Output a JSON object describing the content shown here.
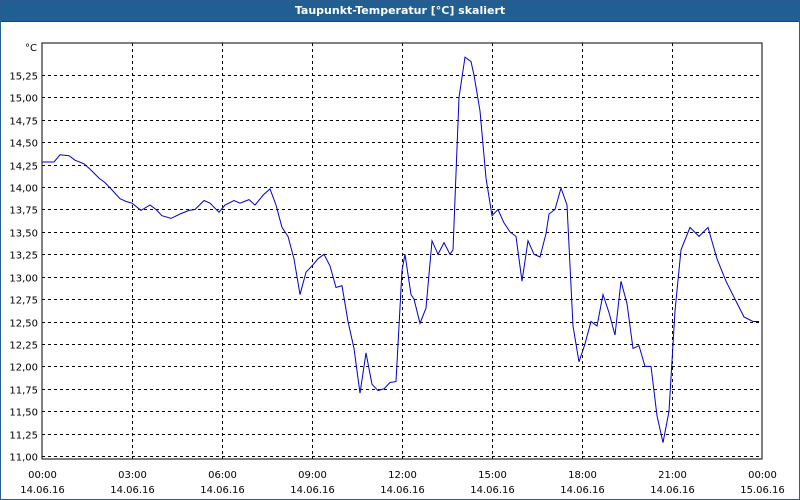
{
  "window": {
    "title": "Taupunkt-Temperatur [°C] skaliert"
  },
  "chart_data": {
    "type": "line",
    "title": "Taupunkt-Temperatur [°C] skaliert",
    "ylabel": "°C",
    "xlabel": "",
    "ylim": [
      11.0,
      15.4
    ],
    "xlim": [
      0,
      24
    ],
    "grid": true,
    "line_color": "#0000cc",
    "y_ticks": [
      "11,00",
      "11,25",
      "11,50",
      "11,75",
      "12,00",
      "12,25",
      "12,50",
      "12,75",
      "13,00",
      "13,25",
      "13,50",
      "13,75",
      "14,00",
      "14,25",
      "14,50",
      "14,75",
      "15,00",
      "15,25"
    ],
    "y_tick_values": [
      11.0,
      11.25,
      11.5,
      11.75,
      12.0,
      12.25,
      12.5,
      12.75,
      13.0,
      13.25,
      13.5,
      13.75,
      14.0,
      14.25,
      14.5,
      14.75,
      15.0,
      15.25
    ],
    "x_ticks": [
      {
        "time": "00:00",
        "date": "14.06.16"
      },
      {
        "time": "03:00",
        "date": "14.06.16"
      },
      {
        "time": "06:00",
        "date": "14.06.16"
      },
      {
        "time": "09:00",
        "date": "14.06.16"
      },
      {
        "time": "12:00",
        "date": "14.06.16"
      },
      {
        "time": "15:00",
        "date": "14.06.16"
      },
      {
        "time": "18:00",
        "date": "14.06.16"
      },
      {
        "time": "21:00",
        "date": "14.06.16"
      },
      {
        "time": "00:00",
        "date": "15.06.16"
      }
    ],
    "x_tick_values": [
      0,
      3,
      6,
      9,
      12,
      15,
      18,
      21,
      24
    ],
    "series": [
      {
        "x": [
          0,
          0.4,
          0.6,
          0.9,
          1.1,
          1.4,
          1.6,
          1.9,
          2.1,
          2.3,
          2.6,
          2.8,
          3.0,
          3.3,
          3.6,
          3.8,
          4.0,
          4.3,
          4.6,
          4.9,
          5.1,
          5.4,
          5.6,
          5.9,
          6.1,
          6.4,
          6.6,
          6.9,
          7.1,
          7.4,
          7.6,
          7.8,
          8.0,
          8.2,
          8.4,
          8.6,
          8.8,
          9.0,
          9.2,
          9.4,
          9.6,
          9.8,
          10.0,
          10.2,
          10.4,
          10.6,
          10.8,
          11.0,
          11.2,
          11.4,
          11.6,
          11.8,
          12.0,
          12.1,
          12.3,
          12.4,
          12.6,
          12.8,
          13.0,
          13.2,
          13.4,
          13.6,
          13.7,
          13.9,
          14.1,
          14.3,
          14.4,
          14.6,
          14.8,
          15.0,
          15.2,
          15.4,
          15.6,
          15.8,
          16.0,
          16.2,
          16.4,
          16.6,
          16.8,
          16.9,
          17.1,
          17.3,
          17.5,
          17.7,
          17.9,
          18.1,
          18.3,
          18.5,
          18.7,
          18.9,
          19.1,
          19.3,
          19.5,
          19.7,
          19.9,
          20.1,
          20.3,
          20.5,
          20.7,
          20.9,
          21.1,
          21.3,
          21.6,
          21.9,
          22.2,
          22.5,
          22.8,
          23.1,
          23.4,
          23.7,
          23.9
        ],
        "y": [
          14.28,
          14.28,
          14.36,
          14.35,
          14.3,
          14.26,
          14.2,
          14.1,
          14.05,
          13.98,
          13.87,
          13.84,
          13.82,
          13.74,
          13.8,
          13.75,
          13.68,
          13.65,
          13.7,
          13.74,
          13.75,
          13.85,
          13.82,
          13.72,
          13.8,
          13.85,
          13.82,
          13.86,
          13.8,
          13.92,
          13.98,
          13.8,
          13.55,
          13.45,
          13.2,
          12.8,
          13.05,
          13.12,
          13.2,
          13.25,
          13.12,
          12.88,
          12.9,
          12.5,
          12.2,
          11.7,
          12.15,
          11.8,
          11.73,
          11.75,
          11.82,
          11.83,
          13.07,
          13.25,
          12.8,
          12.75,
          12.48,
          12.65,
          13.4,
          13.25,
          13.38,
          13.25,
          13.3,
          15.0,
          15.45,
          15.4,
          15.25,
          14.85,
          14.1,
          13.68,
          13.75,
          13.6,
          13.5,
          13.45,
          12.95,
          13.4,
          13.25,
          13.22,
          13.48,
          13.7,
          13.75,
          13.99,
          13.8,
          12.45,
          12.05,
          12.25,
          12.5,
          12.45,
          12.8,
          12.6,
          12.35,
          12.95,
          12.7,
          12.2,
          12.23,
          12.0,
          12.0,
          11.45,
          11.15,
          11.5,
          12.62,
          13.3,
          13.55,
          13.45,
          13.55,
          13.2,
          12.95,
          12.75,
          12.55,
          12.5,
          12.5
        ]
      }
    ]
  }
}
